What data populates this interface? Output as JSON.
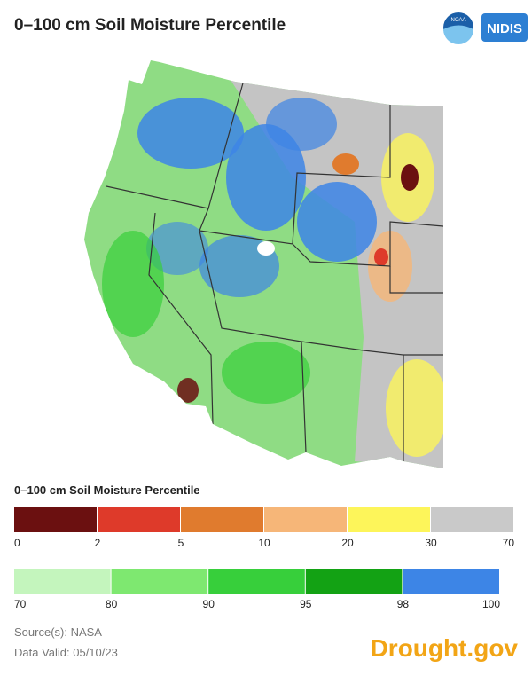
{
  "header": {
    "title": "0–100 cm Soil Moisture Percentile",
    "logos": [
      "NOAA",
      "NIDIS"
    ]
  },
  "legend": {
    "title": "0–100 cm Soil Moisture Percentile",
    "rows": [
      {
        "colors": [
          "#6b1010",
          "#de3a2a",
          "#e07b2e",
          "#f6b678",
          "#fdf55a",
          "#c9c9c9"
        ],
        "ticks": [
          0,
          2,
          5,
          10,
          20,
          30,
          70
        ]
      },
      {
        "colors": [
          "#c4f5bd",
          "#7ee870",
          "#37cf3b",
          "#13a214",
          "#3d85e6"
        ],
        "ticks": [
          70,
          80,
          90,
          95,
          98,
          100
        ]
      }
    ]
  },
  "footer": {
    "source": "Source(s): NASA",
    "date": "Data Valid: 05/10/23",
    "brand": "Drought.gov"
  }
}
